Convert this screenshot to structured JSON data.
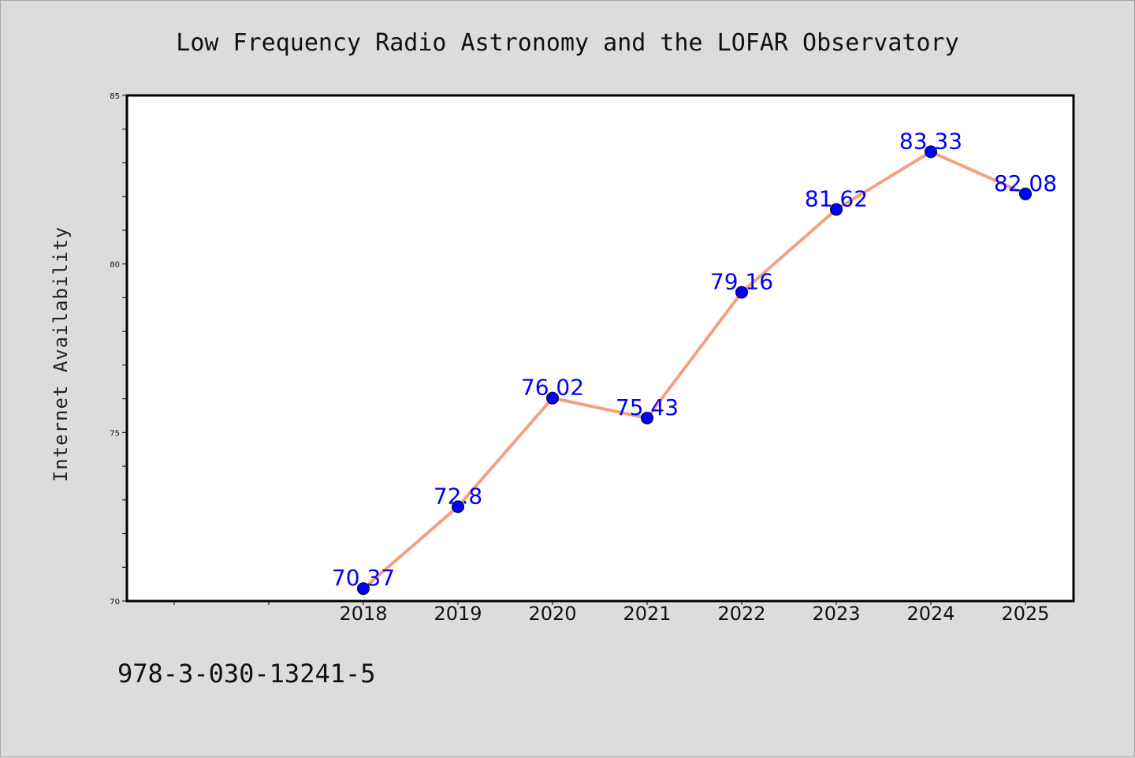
{
  "chart_data": {
    "type": "line",
    "title": "Low Frequency Radio Astronomy and the LOFAR Observatory",
    "ylabel": "Internet Availability",
    "xlabel": "",
    "categories": [
      "2018",
      "2019",
      "2020",
      "2021",
      "2022",
      "2023",
      "2024",
      "2025"
    ],
    "values": [
      70.37,
      72.8,
      76.02,
      75.43,
      79.16,
      81.62,
      83.33,
      82.08
    ],
    "value_labels": [
      "70.37",
      "72.8",
      "76.02",
      "75.43",
      "79.16",
      "81.62",
      "83.33",
      "82.08"
    ],
    "ylim": [
      70,
      85
    ],
    "yticks": [
      "70",
      "75",
      "80",
      "85"
    ],
    "grid": false,
    "legend": "none",
    "line_color": "#f4a07f",
    "marker_color": "#0000ff",
    "label_color": "#0000ff"
  },
  "footer": {
    "isbn": "978-3-030-13241-5"
  }
}
